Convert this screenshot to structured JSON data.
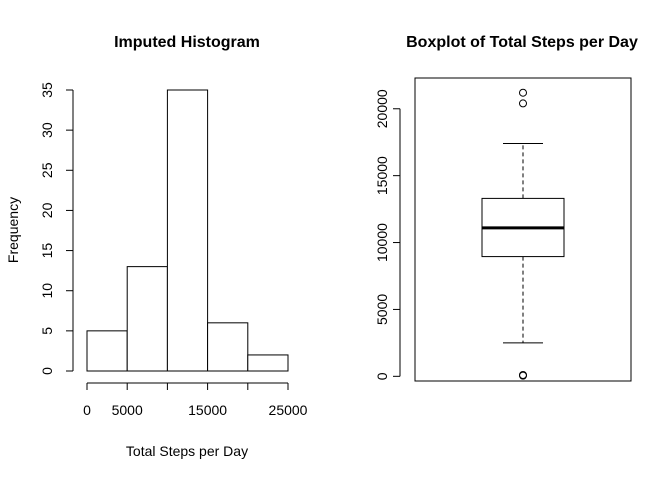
{
  "chart_data": [
    {
      "type": "histogram",
      "title": "Imputed Histogram",
      "xlabel": "Total Steps per Day",
      "ylabel": "Frequency",
      "bins": [
        {
          "from": 0,
          "to": 5000,
          "count": 5
        },
        {
          "from": 5000,
          "to": 10000,
          "count": 13
        },
        {
          "from": 10000,
          "to": 15000,
          "count": 35
        },
        {
          "from": 15000,
          "to": 20000,
          "count": 6
        },
        {
          "from": 20000,
          "to": 25000,
          "count": 2
        }
      ],
      "xlim": [
        0,
        25000
      ],
      "ylim": [
        0,
        35
      ],
      "xticks": [
        0,
        5000,
        10000,
        15000,
        20000,
        25000
      ],
      "xtick_labels": [
        "0",
        "5000",
        "",
        "15000",
        "",
        "25000"
      ],
      "yticks": [
        0,
        5,
        10,
        15,
        20,
        25,
        30,
        35
      ],
      "ytick_labels": [
        "0",
        "5",
        "10",
        "15",
        "20",
        "25",
        "30",
        "35"
      ],
      "fill_color": "#ffffff",
      "stroke_color": "#000000",
      "grid": false
    },
    {
      "type": "boxplot",
      "title": "Boxplot of Total Steps per Day",
      "xlabel": "",
      "ylabel": "",
      "stats": {
        "lower_whisker": 2500,
        "q1": 8950,
        "median": 11100,
        "q3": 13300,
        "upper_whisker": 17400
      },
      "outliers": [
        20400,
        21200,
        50,
        100
      ],
      "yticks": [
        0,
        5000,
        10000,
        15000,
        20000
      ],
      "ytick_labels": [
        "0",
        "5000",
        "10000",
        "15000",
        "20000"
      ],
      "ylim": [
        -350,
        22300
      ],
      "stroke_color": "#000000",
      "grid": false
    }
  ]
}
